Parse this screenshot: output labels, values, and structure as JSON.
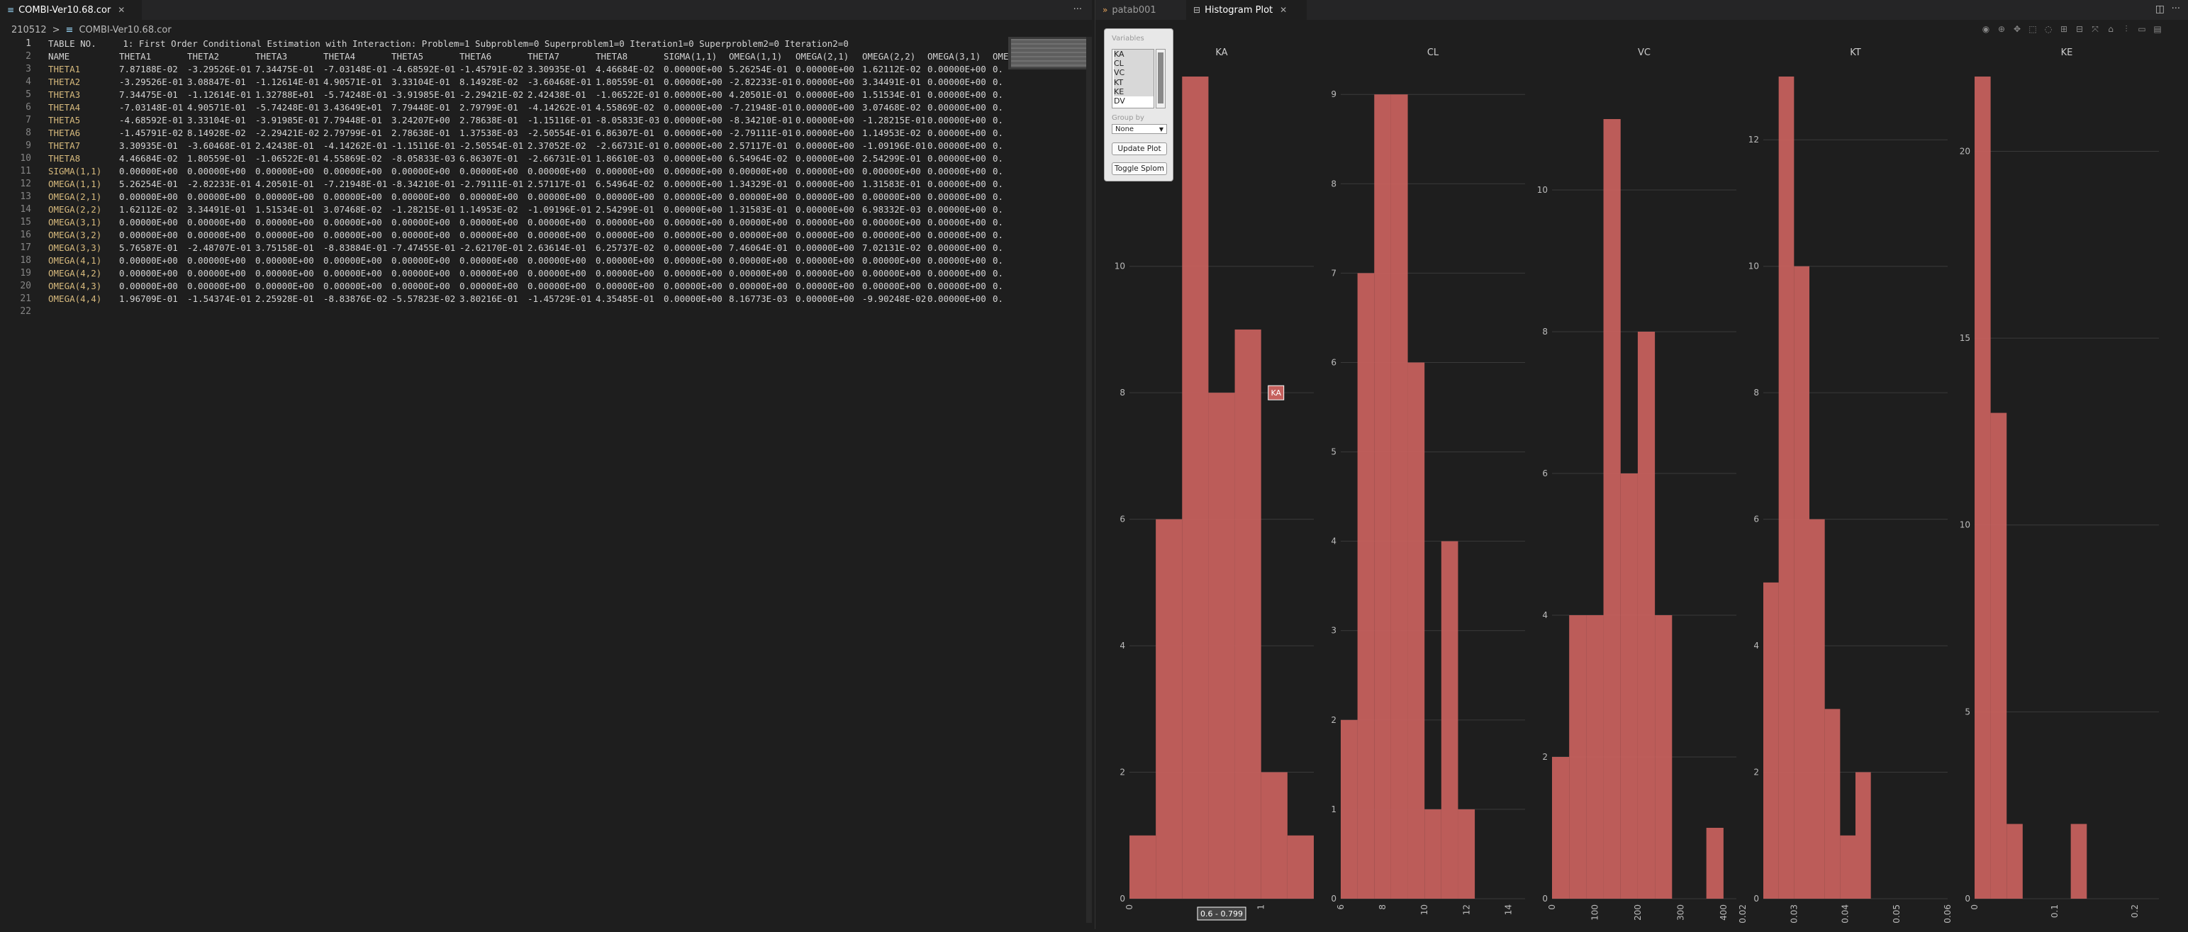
{
  "left": {
    "tab": {
      "title": "COMBI-Ver10.68.cor",
      "icon": "file-icon"
    },
    "more_label": "···",
    "breadcrumb": {
      "folder": "210512",
      "sep": ">",
      "file": "COMBI-Ver10.68.cor"
    },
    "header_line": "TABLE NO.     1: First Order Conditional Estimation with Interaction: Problem=1 Subproblem=0 Superproblem1=0 Iteration1=0 Superproblem2=0 Iteration2=0",
    "columns": [
      "NAME",
      "THETA1",
      "THETA2",
      "THETA3",
      "THETA4",
      "THETA5",
      "THETA6",
      "THETA7",
      "THETA8",
      "SIGMA(1,1)",
      "OMEGA(1,1)",
      "OMEGA(2,1)",
      "OMEGA(2,2)",
      "OMEGA(3,1)",
      "OME"
    ],
    "rows": [
      [
        "THETA1",
        "7.87188E-02",
        "-3.29526E-01",
        "7.34475E-01",
        "-7.03148E-01",
        "-4.68592E-01",
        "-1.45791E-02",
        "3.30935E-01",
        "4.46684E-02",
        "0.00000E+00",
        "5.26254E-01",
        "0.00000E+00",
        "1.62112E-02",
        "0.00000E+00",
        "0."
      ],
      [
        "THETA2",
        "-3.29526E-01",
        "3.08847E-01",
        "-1.12614E-01",
        "4.90571E-01",
        "3.33104E-01",
        "8.14928E-02",
        "-3.60468E-01",
        "1.80559E-01",
        "0.00000E+00",
        "-2.82233E-01",
        "0.00000E+00",
        "3.34491E-01",
        "0.00000E+00",
        "0."
      ],
      [
        "THETA3",
        "7.34475E-01",
        "-1.12614E-01",
        "1.32788E+01",
        "-5.74248E-01",
        "-3.91985E-01",
        "-2.29421E-02",
        "2.42438E-01",
        "-1.06522E-01",
        "0.00000E+00",
        "4.20501E-01",
        "0.00000E+00",
        "1.51534E-01",
        "0.00000E+00",
        "0."
      ],
      [
        "THETA4",
        "-7.03148E-01",
        "4.90571E-01",
        "-5.74248E-01",
        "3.43649E+01",
        "7.79448E-01",
        "2.79799E-01",
        "-4.14262E-01",
        "4.55869E-02",
        "0.00000E+00",
        "-7.21948E-01",
        "0.00000E+00",
        "3.07468E-02",
        "0.00000E+00",
        "0."
      ],
      [
        "THETA5",
        "-4.68592E-01",
        "3.33104E-01",
        "-3.91985E-01",
        "7.79448E-01",
        "3.24207E+00",
        "2.78638E-01",
        "-1.15116E-01",
        "-8.05833E-03",
        "0.00000E+00",
        "-8.34210E-01",
        "0.00000E+00",
        "-1.28215E-01",
        "0.00000E+00",
        "0."
      ],
      [
        "THETA6",
        "-1.45791E-02",
        "8.14928E-02",
        "-2.29421E-02",
        "2.79799E-01",
        "2.78638E-01",
        "1.37538E-03",
        "-2.50554E-01",
        "6.86307E-01",
        "0.00000E+00",
        "-2.79111E-01",
        "0.00000E+00",
        "1.14953E-02",
        "0.00000E+00",
        "0."
      ],
      [
        "THETA7",
        "3.30935E-01",
        "-3.60468E-01",
        "2.42438E-01",
        "-4.14262E-01",
        "-1.15116E-01",
        "-2.50554E-01",
        "2.37052E-02",
        "-2.66731E-01",
        "0.00000E+00",
        "2.57117E-01",
        "0.00000E+00",
        "-1.09196E-01",
        "0.00000E+00",
        "0."
      ],
      [
        "THETA8",
        "4.46684E-02",
        "1.80559E-01",
        "-1.06522E-01",
        "4.55869E-02",
        "-8.05833E-03",
        "6.86307E-01",
        "-2.66731E-01",
        "1.86610E-03",
        "0.00000E+00",
        "6.54964E-02",
        "0.00000E+00",
        "2.54299E-01",
        "0.00000E+00",
        "0."
      ],
      [
        "SIGMA(1,1)",
        "0.00000E+00",
        "0.00000E+00",
        "0.00000E+00",
        "0.00000E+00",
        "0.00000E+00",
        "0.00000E+00",
        "0.00000E+00",
        "0.00000E+00",
        "0.00000E+00",
        "0.00000E+00",
        "0.00000E+00",
        "0.00000E+00",
        "0.00000E+00",
        "0."
      ],
      [
        "OMEGA(1,1)",
        "5.26254E-01",
        "-2.82233E-01",
        "4.20501E-01",
        "-7.21948E-01",
        "-8.34210E-01",
        "-2.79111E-01",
        "2.57117E-01",
        "6.54964E-02",
        "0.00000E+00",
        "1.34329E-01",
        "0.00000E+00",
        "1.31583E-01",
        "0.00000E+00",
        "0."
      ],
      [
        "OMEGA(2,1)",
        "0.00000E+00",
        "0.00000E+00",
        "0.00000E+00",
        "0.00000E+00",
        "0.00000E+00",
        "0.00000E+00",
        "0.00000E+00",
        "0.00000E+00",
        "0.00000E+00",
        "0.00000E+00",
        "0.00000E+00",
        "0.00000E+00",
        "0.00000E+00",
        "0."
      ],
      [
        "OMEGA(2,2)",
        "1.62112E-02",
        "3.34491E-01",
        "1.51534E-01",
        "3.07468E-02",
        "-1.28215E-01",
        "1.14953E-02",
        "-1.09196E-01",
        "2.54299E-01",
        "0.00000E+00",
        "1.31583E-01",
        "0.00000E+00",
        "6.98332E-03",
        "0.00000E+00",
        "0."
      ],
      [
        "OMEGA(3,1)",
        "0.00000E+00",
        "0.00000E+00",
        "0.00000E+00",
        "0.00000E+00",
        "0.00000E+00",
        "0.00000E+00",
        "0.00000E+00",
        "0.00000E+00",
        "0.00000E+00",
        "0.00000E+00",
        "0.00000E+00",
        "0.00000E+00",
        "0.00000E+00",
        "0."
      ],
      [
        "OMEGA(3,2)",
        "0.00000E+00",
        "0.00000E+00",
        "0.00000E+00",
        "0.00000E+00",
        "0.00000E+00",
        "0.00000E+00",
        "0.00000E+00",
        "0.00000E+00",
        "0.00000E+00",
        "0.00000E+00",
        "0.00000E+00",
        "0.00000E+00",
        "0.00000E+00",
        "0."
      ],
      [
        "OMEGA(3,3)",
        "5.76587E-01",
        "-2.48707E-01",
        "3.75158E-01",
        "-8.83884E-01",
        "-7.47455E-01",
        "-2.62170E-01",
        "2.63614E-01",
        "6.25737E-02",
        "0.00000E+00",
        "7.46064E-01",
        "0.00000E+00",
        "7.02131E-02",
        "0.00000E+00",
        "0."
      ],
      [
        "OMEGA(4,1)",
        "0.00000E+00",
        "0.00000E+00",
        "0.00000E+00",
        "0.00000E+00",
        "0.00000E+00",
        "0.00000E+00",
        "0.00000E+00",
        "0.00000E+00",
        "0.00000E+00",
        "0.00000E+00",
        "0.00000E+00",
        "0.00000E+00",
        "0.00000E+00",
        "0."
      ],
      [
        "OMEGA(4,2)",
        "0.00000E+00",
        "0.00000E+00",
        "0.00000E+00",
        "0.00000E+00",
        "0.00000E+00",
        "0.00000E+00",
        "0.00000E+00",
        "0.00000E+00",
        "0.00000E+00",
        "0.00000E+00",
        "0.00000E+00",
        "0.00000E+00",
        "0.00000E+00",
        "0."
      ],
      [
        "OMEGA(4,3)",
        "0.00000E+00",
        "0.00000E+00",
        "0.00000E+00",
        "0.00000E+00",
        "0.00000E+00",
        "0.00000E+00",
        "0.00000E+00",
        "0.00000E+00",
        "0.00000E+00",
        "0.00000E+00",
        "0.00000E+00",
        "0.00000E+00",
        "0.00000E+00",
        "0."
      ],
      [
        "OMEGA(4,4)",
        "1.96709E-01",
        "-1.54374E-01",
        "2.25928E-01",
        "-8.83876E-02",
        "-5.57823E-02",
        "3.80216E-01",
        "-1.45729E-01",
        "4.35485E-01",
        "0.00000E+00",
        "8.16773E-03",
        "0.00000E+00",
        "-9.90248E-02",
        "0.00000E+00",
        "0."
      ]
    ],
    "line_numbers": [
      "1",
      "2",
      "3",
      "4",
      "5",
      "6",
      "7",
      "8",
      "9",
      "10",
      "11",
      "12",
      "13",
      "14",
      "15",
      "16",
      "17",
      "18",
      "19",
      "20",
      "21",
      "22"
    ]
  },
  "right": {
    "tabs": [
      {
        "title": "patab001",
        "active": false
      },
      {
        "title": "Histogram Plot",
        "active": true
      }
    ],
    "controls": {
      "variables_label": "Variables",
      "variables": [
        "KA",
        "CL",
        "VC",
        "KT",
        "KE",
        "DV"
      ],
      "group_label": "Group by",
      "group_value": "None",
      "update_button": "Update Plot",
      "toggle_button": "Toggle Splom"
    },
    "hover": {
      "label": "KA",
      "x_range": "0.6 - 0.799"
    }
  },
  "chart_data": [
    {
      "type": "bar",
      "title": "KA",
      "bar_color": "#c5605d",
      "x_ticks": [
        "0",
        "1"
      ],
      "x_range": [
        0,
        1.4
      ],
      "bins_start": 0,
      "bin_width": 0.2,
      "values": [
        1,
        6,
        13,
        8,
        9,
        2,
        1
      ],
      "ylim": [
        0,
        13
      ],
      "y_ticks": [
        0,
        2,
        4,
        6,
        8,
        10
      ]
    },
    {
      "type": "bar",
      "title": "CL",
      "bar_color": "#c5605d",
      "x_ticks": [
        "6",
        "8",
        "10",
        "12",
        "14"
      ],
      "x_range": [
        6,
        14.8
      ],
      "bins_start": 6,
      "bin_width": 0.8,
      "values": [
        2,
        7,
        9,
        9,
        6,
        1,
        4,
        1
      ],
      "ylim": [
        0,
        9.2
      ],
      "y_ticks": [
        0,
        1,
        2,
        3,
        4,
        5,
        6,
        7,
        8,
        9
      ]
    },
    {
      "type": "bar",
      "title": "VC",
      "bar_color": "#c5605d",
      "x_ticks": [
        "0",
        "100",
        "200",
        "300",
        "400"
      ],
      "x_range": [
        0,
        430
      ],
      "bins_start": 0,
      "bin_width": 40,
      "values": [
        2,
        4,
        4,
        11,
        6,
        8,
        4,
        0,
        0,
        1
      ],
      "ylim": [
        0,
        11.6
      ],
      "y_ticks": [
        0,
        2,
        4,
        6,
        8,
        10
      ]
    },
    {
      "type": "bar",
      "title": "KT",
      "bar_color": "#c5605d",
      "x_ticks": [
        "0.02",
        "0.03",
        "0.04",
        "0.05",
        "0.06"
      ],
      "x_range": [
        0.024,
        0.06
      ],
      "bins_start": 0.024,
      "bin_width": 0.003,
      "values": [
        5,
        13,
        10,
        6,
        3,
        1,
        2
      ],
      "ylim": [
        0,
        13
      ],
      "y_ticks": [
        0,
        2,
        4,
        6,
        8,
        10,
        12
      ]
    },
    {
      "type": "bar",
      "title": "KE",
      "bar_color": "#c5605d",
      "x_ticks": [
        "0",
        "0.1",
        "0.2"
      ],
      "x_range": [
        0,
        0.23
      ],
      "bins_start": 0,
      "bin_width": 0.02,
      "values": [
        22,
        13,
        2,
        0,
        0,
        0,
        2
      ],
      "ylim": [
        0,
        22
      ],
      "y_ticks": [
        0,
        5,
        10,
        15,
        20
      ]
    }
  ]
}
